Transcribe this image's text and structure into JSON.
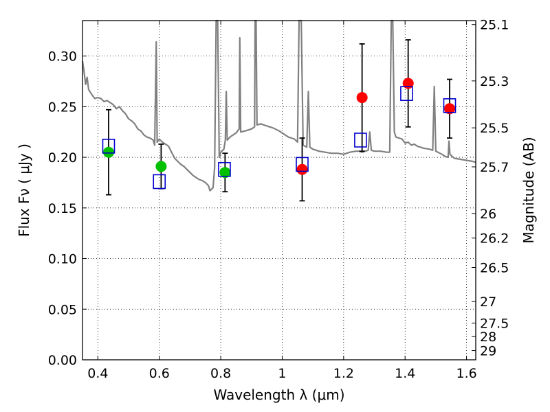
{
  "chart_data": {
    "type": "scatter",
    "xlabel": "Wavelength  λ (μm)",
    "ylabel": "Flux  Fν  ( μJy )",
    "y2label": "Magnitude (AB)",
    "xlim": [
      0.35,
      1.63
    ],
    "ylim": [
      0.0,
      0.335
    ],
    "grid": true,
    "x_ticks": [
      {
        "value": 0.4,
        "label": "0.4"
      },
      {
        "value": 0.6,
        "label": "0.6"
      },
      {
        "value": 0.8,
        "label": "0.8"
      },
      {
        "value": 1.0,
        "label": "1"
      },
      {
        "value": 1.2,
        "label": "1.2"
      },
      {
        "value": 1.4,
        "label": "1.4"
      },
      {
        "value": 1.6,
        "label": "1.6"
      }
    ],
    "y_ticks": [
      {
        "value": 0.0,
        "label": "0.00"
      },
      {
        "value": 0.05,
        "label": "0.05"
      },
      {
        "value": 0.1,
        "label": "0.10"
      },
      {
        "value": 0.15,
        "label": "0.15"
      },
      {
        "value": 0.2,
        "label": "0.20"
      },
      {
        "value": 0.25,
        "label": "0.25"
      },
      {
        "value": 0.3,
        "label": "0.30"
      }
    ],
    "mag_ticks": [
      {
        "value": 25.1,
        "label": "25.1"
      },
      {
        "value": 25.3,
        "label": "25.3"
      },
      {
        "value": 25.5,
        "label": "25.5"
      },
      {
        "value": 25.7,
        "label": "25.7"
      },
      {
        "value": 26.0,
        "label": "26"
      },
      {
        "value": 26.2,
        "label": "26.2"
      },
      {
        "value": 26.5,
        "label": "26.5"
      },
      {
        "value": 27.0,
        "label": "27"
      },
      {
        "value": 27.5,
        "label": "27.5"
      },
      {
        "value": 28.0,
        "label": "28"
      },
      {
        "value": 29.0,
        "label": "29"
      }
    ],
    "series": [
      {
        "type": "errorbar-points",
        "color": "#00c000",
        "points": [
          {
            "x": 0.435,
            "y": 0.205,
            "err": 0.042
          },
          {
            "x": 0.606,
            "y": 0.191,
            "err": 0.022
          },
          {
            "x": 0.814,
            "y": 0.185,
            "err": 0.019
          }
        ]
      },
      {
        "type": "errorbar-points",
        "color": "#ff0000",
        "points": [
          {
            "x": 1.065,
            "y": 0.188,
            "err": 0.031
          },
          {
            "x": 1.26,
            "y": 0.259,
            "err": 0.053
          },
          {
            "x": 1.41,
            "y": 0.273,
            "err": 0.043
          },
          {
            "x": 1.545,
            "y": 0.248,
            "err": 0.029
          }
        ]
      },
      {
        "type": "model-photometry",
        "color": "#0000cc",
        "points": [
          {
            "x": 0.435,
            "y": 0.211
          },
          {
            "x": 0.6,
            "y": 0.176
          },
          {
            "x": 0.812,
            "y": 0.188
          },
          {
            "x": 1.065,
            "y": 0.193
          },
          {
            "x": 1.255,
            "y": 0.217
          },
          {
            "x": 1.405,
            "y": 0.263
          },
          {
            "x": 1.545,
            "y": 0.251
          }
        ]
      },
      {
        "type": "spectrum",
        "color": "#808080",
        "points": [
          [
            0.35,
            0.295
          ],
          [
            0.355,
            0.285
          ],
          [
            0.36,
            0.272
          ],
          [
            0.365,
            0.279
          ],
          [
            0.37,
            0.267
          ],
          [
            0.38,
            0.262
          ],
          [
            0.39,
            0.258
          ],
          [
            0.4,
            0.259
          ],
          [
            0.41,
            0.258
          ],
          [
            0.42,
            0.255
          ],
          [
            0.43,
            0.256
          ],
          [
            0.44,
            0.254
          ],
          [
            0.45,
            0.252
          ],
          [
            0.46,
            0.248
          ],
          [
            0.47,
            0.25
          ],
          [
            0.48,
            0.246
          ],
          [
            0.49,
            0.243
          ],
          [
            0.5,
            0.238
          ],
          [
            0.51,
            0.236
          ],
          [
            0.52,
            0.233
          ],
          [
            0.53,
            0.228
          ],
          [
            0.54,
            0.226
          ],
          [
            0.55,
            0.222
          ],
          [
            0.56,
            0.22
          ],
          [
            0.57,
            0.219
          ],
          [
            0.58,
            0.217
          ],
          [
            0.585,
            0.212
          ],
          [
            0.59,
            0.314
          ],
          [
            0.593,
            0.215
          ],
          [
            0.6,
            0.218
          ],
          [
            0.61,
            0.215
          ],
          [
            0.62,
            0.213
          ],
          [
            0.63,
            0.211
          ],
          [
            0.64,
            0.205
          ],
          [
            0.65,
            0.199
          ],
          [
            0.66,
            0.196
          ],
          [
            0.67,
            0.193
          ],
          [
            0.68,
            0.191
          ],
          [
            0.69,
            0.188
          ],
          [
            0.7,
            0.185
          ],
          [
            0.71,
            0.182
          ],
          [
            0.72,
            0.18
          ],
          [
            0.73,
            0.178
          ],
          [
            0.74,
            0.177
          ],
          [
            0.75,
            0.175
          ],
          [
            0.76,
            0.172
          ],
          [
            0.765,
            0.167
          ],
          [
            0.775,
            0.17
          ],
          [
            0.78,
            0.19
          ],
          [
            0.785,
            0.335
          ],
          [
            0.79,
            0.335
          ],
          [
            0.795,
            0.2
          ],
          [
            0.8,
            0.205
          ],
          [
            0.81,
            0.208
          ],
          [
            0.815,
            0.217
          ],
          [
            0.818,
            0.265
          ],
          [
            0.821,
            0.217
          ],
          [
            0.83,
            0.22
          ],
          [
            0.84,
            0.222
          ],
          [
            0.85,
            0.224
          ],
          [
            0.86,
            0.228
          ],
          [
            0.862,
            0.318
          ],
          [
            0.865,
            0.225
          ],
          [
            0.88,
            0.226
          ],
          [
            0.9,
            0.228
          ],
          [
            0.91,
            0.23
          ],
          [
            0.912,
            0.335
          ],
          [
            0.915,
            0.335
          ],
          [
            0.918,
            0.232
          ],
          [
            0.93,
            0.233
          ],
          [
            0.95,
            0.231
          ],
          [
            0.97,
            0.229
          ],
          [
            0.99,
            0.226
          ],
          [
            1.0,
            0.224
          ],
          [
            1.02,
            0.22
          ],
          [
            1.04,
            0.218
          ],
          [
            1.05,
            0.215
          ],
          [
            1.055,
            0.335
          ],
          [
            1.062,
            0.335
          ],
          [
            1.068,
            0.212
          ],
          [
            1.08,
            0.21
          ],
          [
            1.085,
            0.265
          ],
          [
            1.09,
            0.21
          ],
          [
            1.1,
            0.208
          ],
          [
            1.12,
            0.206
          ],
          [
            1.14,
            0.205
          ],
          [
            1.16,
            0.204
          ],
          [
            1.18,
            0.204
          ],
          [
            1.2,
            0.203
          ],
          [
            1.22,
            0.205
          ],
          [
            1.24,
            0.206
          ],
          [
            1.25,
            0.206
          ],
          [
            1.26,
            0.205
          ],
          [
            1.27,
            0.206
          ],
          [
            1.28,
            0.207
          ],
          [
            1.285,
            0.225
          ],
          [
            1.29,
            0.207
          ],
          [
            1.3,
            0.206
          ],
          [
            1.32,
            0.206
          ],
          [
            1.34,
            0.205
          ],
          [
            1.35,
            0.205
          ],
          [
            1.355,
            0.335
          ],
          [
            1.36,
            0.335
          ],
          [
            1.365,
            0.225
          ],
          [
            1.37,
            0.22
          ],
          [
            1.39,
            0.218
          ],
          [
            1.4,
            0.214
          ],
          [
            1.41,
            0.215
          ],
          [
            1.42,
            0.212
          ],
          [
            1.43,
            0.213
          ],
          [
            1.44,
            0.211
          ],
          [
            1.45,
            0.21
          ],
          [
            1.46,
            0.209
          ],
          [
            1.48,
            0.208
          ],
          [
            1.49,
            0.207
          ],
          [
            1.495,
            0.27
          ],
          [
            1.5,
            0.206
          ],
          [
            1.52,
            0.203
          ],
          [
            1.53,
            0.201
          ],
          [
            1.54,
            0.2
          ],
          [
            1.543,
            0.216
          ],
          [
            1.546,
            0.203
          ],
          [
            1.56,
            0.199
          ],
          [
            1.58,
            0.198
          ],
          [
            1.6,
            0.197
          ],
          [
            1.62,
            0.196
          ],
          [
            1.63,
            0.195
          ]
        ]
      }
    ]
  }
}
